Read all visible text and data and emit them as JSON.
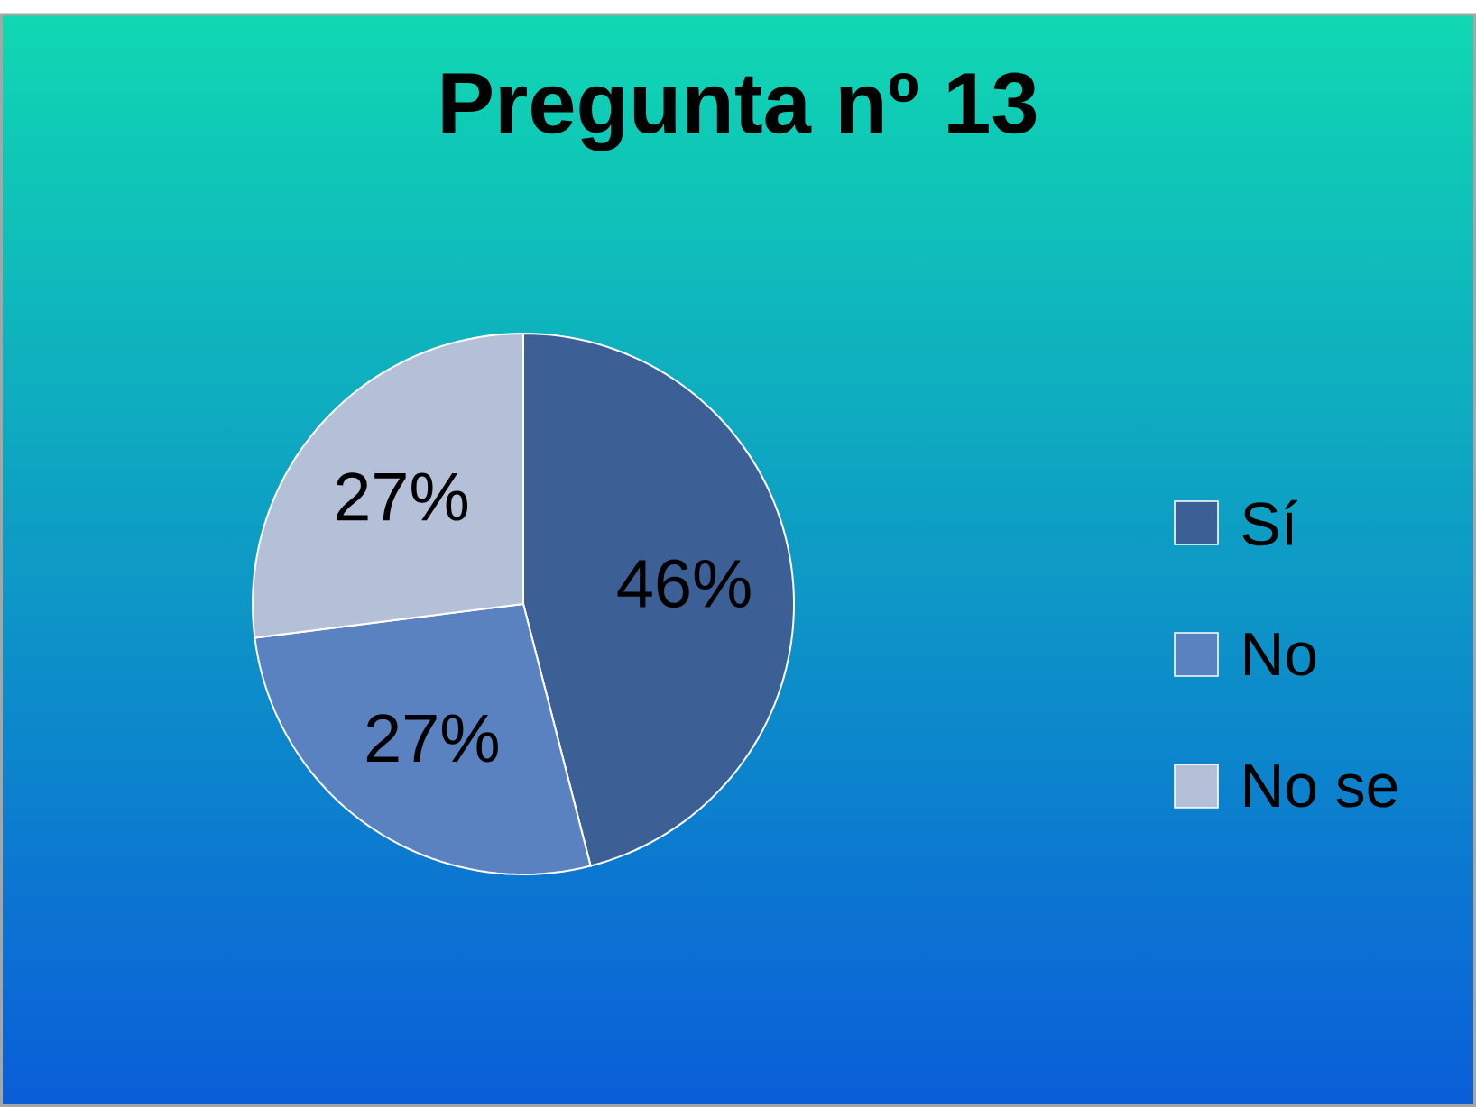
{
  "chart_data": {
    "type": "pie",
    "title": "Pregunta nº 13",
    "categories": [
      "Sí",
      "No",
      "No se"
    ],
    "values": [
      46,
      27,
      27
    ],
    "colors": [
      "#3c5f96",
      "#5a82c0",
      "#b4c0d8"
    ],
    "value_labels": [
      "46%",
      "27%",
      "27%"
    ],
    "legend": "right"
  }
}
